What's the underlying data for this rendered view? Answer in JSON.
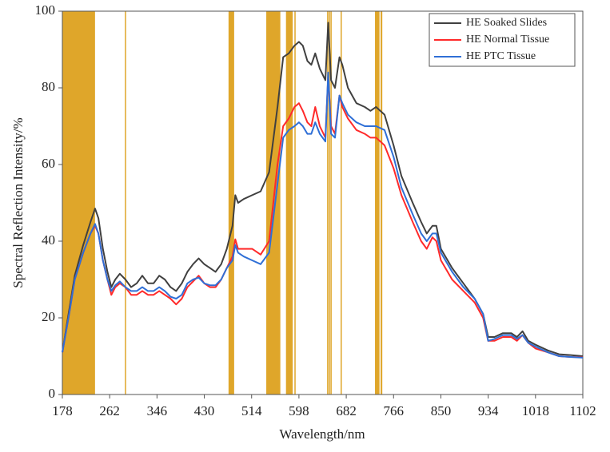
{
  "chart_data": {
    "type": "line",
    "x_label": "Wavelength/nm",
    "y_label": "Spectral Reflection Intensity/%",
    "x": [
      178,
      190,
      200,
      215,
      228,
      236,
      242,
      250,
      258,
      265,
      272,
      280,
      290,
      300,
      310,
      320,
      330,
      340,
      350,
      360,
      370,
      380,
      390,
      400,
      410,
      420,
      430,
      440,
      450,
      460,
      470,
      480,
      485,
      490,
      500,
      515,
      530,
      545,
      560,
      570,
      580,
      590,
      598,
      605,
      613,
      620,
      627,
      635,
      645,
      650,
      655,
      662,
      670,
      675,
      685,
      700,
      715,
      725,
      735,
      750,
      766,
      780,
      800,
      815,
      825,
      835,
      842,
      850,
      870,
      890,
      910,
      925,
      934,
      945,
      960,
      975,
      985,
      995,
      1005,
      1018,
      1040,
      1060,
      1080,
      1102
    ],
    "series": [
      {
        "name": "HE Soaked Slides",
        "color": "#404040",
        "values": [
          11,
          22,
          31,
          39,
          45,
          48.5,
          46,
          38,
          32,
          28,
          30,
          31.5,
          30,
          28,
          29,
          31,
          29,
          29,
          31,
          30,
          28,
          27,
          29,
          32,
          34,
          35.5,
          34,
          33,
          32,
          34,
          38,
          44,
          52,
          50,
          51,
          52,
          53,
          58,
          75,
          88,
          89,
          91,
          92,
          91,
          87,
          86,
          89,
          85,
          82,
          97,
          82,
          80,
          88,
          86,
          80,
          76,
          75,
          74,
          75,
          73,
          65,
          57,
          50,
          45,
          42,
          44,
          44,
          38,
          33,
          29,
          25,
          21,
          15,
          15,
          16,
          16,
          15,
          16.5,
          14,
          13,
          11.5,
          10.5,
          10.3,
          10
        ]
      },
      {
        "name": "HE Normal Tissue",
        "color": "#ff2a2a",
        "values": [
          11,
          21,
          30,
          37,
          42,
          44,
          42,
          35,
          30,
          26,
          28,
          29,
          28,
          26,
          26,
          27,
          26,
          26,
          27,
          26,
          25,
          23.5,
          25,
          28,
          29.5,
          31,
          29,
          28,
          28,
          30,
          33,
          36,
          40.5,
          38,
          38,
          38,
          36.5,
          40,
          60,
          70,
          72,
          75,
          76,
          74,
          71,
          70,
          75,
          70,
          67,
          83,
          70,
          68,
          78,
          75,
          72,
          69,
          68,
          67,
          67,
          65,
          59,
          52,
          45,
          40,
          38,
          41,
          40,
          35,
          30,
          27,
          24,
          20,
          14,
          14,
          15,
          15,
          14,
          15.5,
          13.5,
          12,
          11,
          10,
          9.8,
          9.7
        ]
      },
      {
        "name": "HE PTC Tissue",
        "color": "#2f6fd6",
        "values": [
          11,
          21,
          30,
          37,
          42,
          44.5,
          42,
          35,
          30,
          27,
          28.5,
          29.5,
          28,
          27,
          27,
          28,
          27,
          27,
          28,
          27,
          25.5,
          25,
          26,
          29,
          30,
          30.5,
          29,
          28.5,
          28.5,
          30,
          33,
          35,
          39,
          37,
          36,
          35,
          34,
          37,
          55,
          67,
          69,
          70,
          71,
          70,
          68,
          68,
          71,
          68,
          66,
          84,
          68,
          67,
          78,
          76,
          73,
          71,
          70,
          70,
          70,
          69,
          62,
          54,
          47,
          42,
          40,
          42,
          42,
          37,
          32,
          28,
          25,
          21,
          14,
          14.5,
          15.5,
          15.5,
          14.5,
          15.5,
          13.5,
          12.5,
          11,
          10,
          9.8,
          9.6
        ]
      }
    ],
    "highlight_bands": [
      [
        178,
        236
      ],
      [
        289,
        291
      ],
      [
        473,
        483
      ],
      [
        540,
        565
      ],
      [
        575,
        587
      ],
      [
        590,
        592
      ],
      [
        648,
        650
      ],
      [
        651,
        653
      ],
      [
        654,
        656
      ],
      [
        672,
        674
      ],
      [
        733,
        741
      ],
      [
        743,
        746
      ]
    ],
    "band_color": "#dfa62a",
    "xlim": [
      178,
      1102
    ],
    "xticks": [
      178,
      262,
      346,
      430,
      514,
      598,
      682,
      766,
      850,
      934,
      1018,
      1102
    ],
    "ylim": [
      0,
      100
    ],
    "yticks": [
      0,
      20,
      40,
      60,
      80,
      100
    ],
    "legend": "top-right"
  }
}
